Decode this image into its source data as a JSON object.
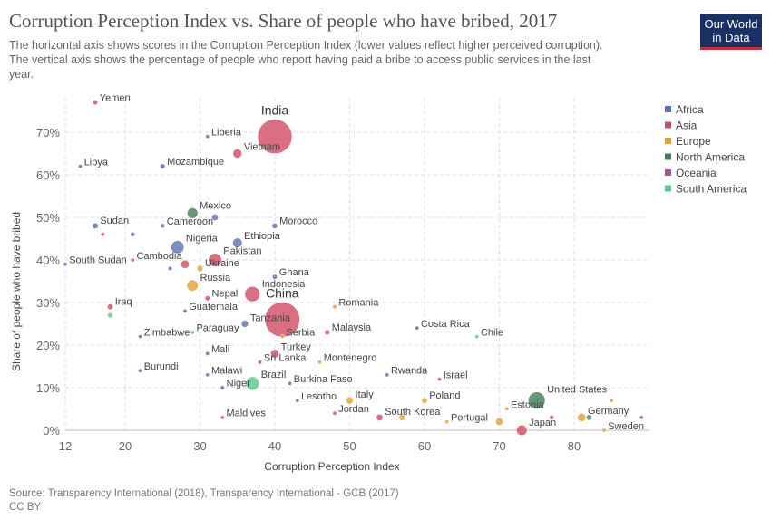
{
  "chart_data": {
    "type": "scatter",
    "title": "Corruption Perception Index vs. Share of people who have bribed, 2017",
    "subtitle": [
      "The horizontal axis shows scores in the Corruption Perception Index (lower values reflect higher perceived corruption).",
      "The vertical axis shows the percentage of people who report having paid a bribe to access public services in the last",
      "year."
    ],
    "x_label": "Corruption Perception Index",
    "y_label": "Share of people who have bribed",
    "source": "Source: Transparency International (2018), Transparency International - GCB (2017)",
    "license": "CC BY",
    "logo": [
      "Our World",
      "in Data"
    ],
    "xlim": [
      12,
      90
    ],
    "ylim": [
      0,
      78
    ],
    "xticks": [
      12,
      20,
      30,
      40,
      50,
      60,
      70,
      80
    ],
    "yticks": [
      {
        "value": 0,
        "label": "0%"
      },
      {
        "value": 10,
        "label": "10%"
      },
      {
        "value": 20,
        "label": "20%"
      },
      {
        "value": 30,
        "label": "30%"
      },
      {
        "value": 40,
        "label": "40%"
      },
      {
        "value": 50,
        "label": "50%"
      },
      {
        "value": 60,
        "label": "60%"
      },
      {
        "value": 70,
        "label": "70%"
      }
    ],
    "grid": true,
    "legend": "right",
    "series": [
      {
        "name": "Africa",
        "color": "#5a72b5",
        "labels": [
          "Liberia",
          "Libya",
          "Mozambique",
          "Sudan",
          "Cameroon",
          null,
          null,
          "Morocco",
          "Nigeria",
          "Ethiopia",
          "South Sudan",
          "Ghana",
          "Tanzania",
          "Zimbabwe",
          "Mali",
          "Burundi",
          "Malawi",
          "Niger",
          "Burkina Faso",
          "Lesotho",
          "Rwanda",
          null
        ],
        "x": [
          31,
          14,
          25,
          16,
          25,
          32,
          21,
          40,
          27,
          35,
          12,
          40,
          36,
          22,
          31,
          22,
          31,
          33,
          42,
          43,
          55,
          26
        ],
        "values": [
          69,
          62,
          62,
          48,
          48,
          50,
          46,
          48,
          43,
          44,
          39,
          36,
          25,
          22,
          18,
          14,
          13,
          10,
          11,
          7,
          13,
          38
        ],
        "sizes": [
          5,
          6,
          30,
          41,
          24,
          50,
          25,
          36,
          191,
          105,
          12,
          29,
          57,
          14,
          19,
          11,
          18,
          21,
          19,
          2,
          12,
          20
        ]
      },
      {
        "name": "Asia",
        "color": "#cf4b62",
        "labels": [
          "Yemen",
          "India",
          "Vietnam",
          "Pakistan",
          "Cambodia",
          "Indonesia",
          "China",
          "Iraq",
          "Nepal",
          "Turkey",
          "Malaysia",
          "Sri Lanka",
          "Maldives",
          "Jordan",
          "South Korea",
          "Japan",
          "Israel",
          null,
          null
        ],
        "x": [
          16,
          40,
          35,
          32,
          21,
          37,
          41,
          18,
          31,
          40,
          47,
          38,
          33,
          48,
          54,
          73,
          62,
          28,
          17
        ],
        "values": [
          77,
          69,
          65,
          40,
          40,
          32,
          26,
          29,
          31,
          18,
          23,
          16,
          3,
          4,
          3,
          0,
          12,
          39,
          46
        ],
        "sizes": [
          28,
          1339,
          95,
          197,
          16,
          264,
          1386,
          38,
          29,
          81,
          32,
          21,
          0.4,
          10,
          51,
          127,
          9,
          80,
          2
        ]
      },
      {
        "name": "Europe",
        "color": "#e3a033",
        "labels": [
          "Ukraine",
          "Russia",
          "Romania",
          "Serbia",
          "Montenegro",
          "Italy",
          "Poland",
          "Portugal",
          "Estonia",
          "Germany",
          "Sweden",
          null,
          null,
          null
        ],
        "x": [
          30,
          29,
          48,
          41,
          46,
          50,
          60,
          63,
          71,
          81,
          84,
          70,
          57,
          85
        ],
        "values": [
          38,
          34,
          29,
          22,
          16,
          7,
          7,
          2,
          5,
          3,
          0,
          2,
          3,
          7
        ],
        "sizes": [
          45,
          145,
          20,
          7,
          0.6,
          60,
          38,
          10,
          1.3,
          82,
          10,
          66,
          46,
          5
        ]
      },
      {
        "name": "North America",
        "color": "#3f7f55",
        "labels": [
          "Mexico",
          "Guatemala",
          "Costa Rica",
          "United States",
          null
        ],
        "x": [
          29,
          28,
          59,
          75,
          82
        ],
        "values": [
          51,
          28,
          24,
          7,
          3
        ],
        "sizes": [
          129,
          17,
          5,
          325,
          37
        ]
      },
      {
        "name": "Oceania",
        "color": "#a452a0",
        "labels": [
          null,
          null
        ],
        "x": [
          77,
          89
        ],
        "values": [
          3,
          3
        ],
        "sizes": [
          25,
          5
        ]
      },
      {
        "name": "South America",
        "color": "#5ec48f",
        "labels": [
          null,
          "Paraguay",
          "Brazil",
          "Chile"
        ],
        "x": [
          18,
          29,
          37,
          67
        ],
        "values": [
          27,
          23,
          11,
          22
        ],
        "sizes": [
          32,
          7,
          209,
          18
        ]
      }
    ]
  }
}
